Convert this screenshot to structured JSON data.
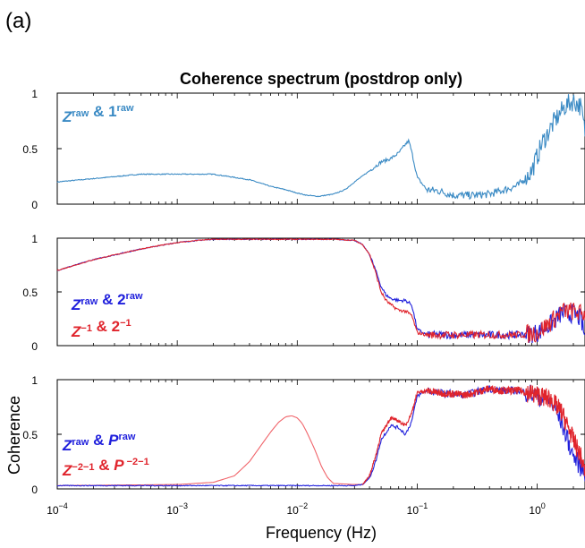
{
  "figure": {
    "panel_label": "(a)",
    "title": "Coherence spectrum (postdrop only)",
    "xlabel": "Frequency (Hz)",
    "ylabel": "Coherence"
  },
  "colors": {
    "light_blue": "#3a8ac4",
    "blue": "#1f1fdc",
    "red": "#e0242c",
    "pink_red": "#f0646a"
  },
  "chart_data": [
    {
      "type": "line",
      "xscale": "log",
      "xlim": [
        0.0001,
        2.5
      ],
      "ylim": [
        0,
        1
      ],
      "yticks": [
        0,
        0.5,
        1
      ],
      "ytick_labels": [
        "0",
        "0.5",
        "1"
      ],
      "legend_lines": [
        {
          "color": "#3a8ac4",
          "parts": [
            {
              "t": "Z",
              "i": true
            },
            {
              "t": "raw",
              "sup": true
            },
            {
              "t": " & 1"
            },
            {
              "t": "raw",
              "sup": true
            }
          ]
        }
      ],
      "series": [
        {
          "color": "#3a8ac4",
          "noisy": true,
          "x": [
            0.0001,
            0.0002,
            0.0005,
            0.001,
            0.002,
            0.004,
            0.006,
            0.008,
            0.01,
            0.012,
            0.015,
            0.02,
            0.025,
            0.03,
            0.04,
            0.05,
            0.06,
            0.07,
            0.08,
            0.085,
            0.09,
            0.1,
            0.12,
            0.15,
            0.2,
            0.3,
            0.4,
            0.5,
            0.7,
            0.9,
            1.1,
            1.4,
            1.7,
            2.0,
            2.3,
            2.5
          ],
          "y": [
            0.2,
            0.23,
            0.27,
            0.27,
            0.27,
            0.22,
            0.16,
            0.13,
            0.1,
            0.08,
            0.07,
            0.09,
            0.13,
            0.2,
            0.3,
            0.38,
            0.41,
            0.46,
            0.54,
            0.57,
            0.47,
            0.24,
            0.13,
            0.12,
            0.08,
            0.08,
            0.09,
            0.12,
            0.17,
            0.3,
            0.55,
            0.75,
            0.88,
            0.93,
            0.88,
            0.65
          ]
        }
      ]
    },
    {
      "type": "line",
      "xscale": "log",
      "xlim": [
        0.0001,
        2.5
      ],
      "ylim": [
        0,
        1
      ],
      "yticks": [
        0,
        0.5,
        1
      ],
      "ytick_labels": [
        "0",
        "0.5",
        "1"
      ],
      "legend_lines": [
        {
          "color": "#1f1fdc",
          "parts": [
            {
              "t": "Z",
              "i": true
            },
            {
              "t": "raw",
              "sup": true
            },
            {
              "t": " & 2"
            },
            {
              "t": "raw",
              "sup": true
            }
          ]
        },
        {
          "color": "#e0242c",
          "parts": [
            {
              "t": "Z",
              "i": true
            },
            {
              "t": "−1",
              "sup": true
            },
            {
              "t": " & 2"
            },
            {
              "t": "−1",
              "sup": true
            }
          ]
        }
      ],
      "series": [
        {
          "color": "#1f1fdc",
          "noisy": true,
          "x": [
            0.0001,
            0.0002,
            0.0005,
            0.001,
            0.0015,
            0.002,
            0.005,
            0.01,
            0.02,
            0.03,
            0.035,
            0.04,
            0.045,
            0.05,
            0.055,
            0.06,
            0.07,
            0.08,
            0.09,
            0.1,
            0.12,
            0.15,
            0.2,
            0.3,
            0.5,
            0.7,
            1.0,
            1.3,
            1.6,
            2.0,
            2.3,
            2.5
          ],
          "y": [
            0.7,
            0.8,
            0.9,
            0.96,
            0.98,
            0.99,
            0.99,
            0.99,
            0.99,
            0.98,
            0.94,
            0.85,
            0.7,
            0.55,
            0.47,
            0.44,
            0.42,
            0.42,
            0.38,
            0.15,
            0.1,
            0.1,
            0.1,
            0.1,
            0.1,
            0.1,
            0.12,
            0.2,
            0.3,
            0.3,
            0.25,
            0.08
          ]
        },
        {
          "color": "#e0242c",
          "noisy": true,
          "x": [
            0.0001,
            0.0002,
            0.0005,
            0.001,
            0.0015,
            0.002,
            0.005,
            0.01,
            0.02,
            0.03,
            0.035,
            0.04,
            0.045,
            0.05,
            0.055,
            0.06,
            0.07,
            0.08,
            0.09,
            0.1,
            0.12,
            0.15,
            0.2,
            0.3,
            0.5,
            0.7,
            1.0,
            1.3,
            1.6,
            2.0,
            2.3,
            2.5
          ],
          "y": [
            0.7,
            0.8,
            0.9,
            0.96,
            0.98,
            0.99,
            0.99,
            0.99,
            0.99,
            0.98,
            0.94,
            0.85,
            0.68,
            0.5,
            0.42,
            0.38,
            0.33,
            0.32,
            0.28,
            0.12,
            0.1,
            0.1,
            0.1,
            0.1,
            0.1,
            0.1,
            0.12,
            0.22,
            0.32,
            0.32,
            0.3,
            0.3
          ]
        }
      ]
    },
    {
      "type": "line",
      "xscale": "log",
      "xlim": [
        0.0001,
        2.5
      ],
      "ylim": [
        0,
        1
      ],
      "yticks": [
        0,
        0.5,
        1
      ],
      "ytick_labels": [
        "0",
        "0.5",
        "1"
      ],
      "xticks": [
        0.0001,
        0.001,
        0.01,
        0.1,
        1
      ],
      "xtick_labels": [
        {
          "base": "10",
          "exp": "−4"
        },
        {
          "base": "10",
          "exp": "−3"
        },
        {
          "base": "10",
          "exp": "−2"
        },
        {
          "base": "10",
          "exp": "−1"
        },
        {
          "base": "10",
          "exp": "0"
        }
      ],
      "legend_lines": [
        {
          "color": "#1f1fdc",
          "parts": [
            {
              "t": "Z",
              "i": true
            },
            {
              "t": "raw",
              "sup": true
            },
            {
              "t": " & "
            },
            {
              "t": "P",
              "i": true
            },
            {
              "t": "raw",
              "sup": true
            }
          ]
        },
        {
          "color": "#e0242c",
          "parts": [
            {
              "t": "Z",
              "i": true
            },
            {
              "t": "−2−1",
              "sup": true
            },
            {
              "t": " & "
            },
            {
              "t": "P",
              "i": true
            },
            {
              "t": " −2−1",
              "sup": true
            }
          ]
        }
      ],
      "series": [
        {
          "color": "#f0646a",
          "noisy": false,
          "x": [
            0.0001,
            0.001,
            0.002,
            0.003,
            0.004,
            0.005,
            0.006,
            0.007,
            0.008,
            0.009,
            0.01,
            0.011,
            0.012,
            0.014,
            0.016,
            0.018,
            0.02,
            0.03,
            0.035
          ],
          "y": [
            0.03,
            0.04,
            0.06,
            0.12,
            0.25,
            0.4,
            0.52,
            0.61,
            0.66,
            0.67,
            0.65,
            0.6,
            0.52,
            0.36,
            0.2,
            0.1,
            0.05,
            0.04,
            0.04
          ]
        },
        {
          "color": "#1f1fdc",
          "noisy": true,
          "x": [
            0.0001,
            0.001,
            0.005,
            0.01,
            0.02,
            0.03,
            0.035,
            0.04,
            0.045,
            0.05,
            0.06,
            0.07,
            0.08,
            0.09,
            0.1,
            0.12,
            0.15,
            0.2,
            0.25,
            0.3,
            0.4,
            0.5,
            0.7,
            1.0,
            1.3,
            1.6,
            2.0,
            2.3,
            2.5
          ],
          "y": [
            0.03,
            0.03,
            0.03,
            0.03,
            0.03,
            0.03,
            0.04,
            0.1,
            0.25,
            0.45,
            0.58,
            0.56,
            0.5,
            0.62,
            0.85,
            0.9,
            0.88,
            0.87,
            0.86,
            0.88,
            0.92,
            0.9,
            0.9,
            0.85,
            0.8,
            0.6,
            0.3,
            0.2,
            0.15
          ]
        },
        {
          "color": "#e0242c",
          "noisy": true,
          "x": [
            0.035,
            0.04,
            0.045,
            0.05,
            0.06,
            0.07,
            0.08,
            0.09,
            0.1,
            0.12,
            0.15,
            0.2,
            0.25,
            0.3,
            0.4,
            0.5,
            0.7,
            1.0,
            1.3,
            1.6,
            2.0,
            2.3,
            2.5
          ],
          "y": [
            0.04,
            0.12,
            0.3,
            0.5,
            0.65,
            0.62,
            0.58,
            0.7,
            0.88,
            0.9,
            0.88,
            0.87,
            0.86,
            0.88,
            0.92,
            0.9,
            0.9,
            0.86,
            0.82,
            0.7,
            0.45,
            0.3,
            0.15
          ]
        }
      ]
    }
  ]
}
